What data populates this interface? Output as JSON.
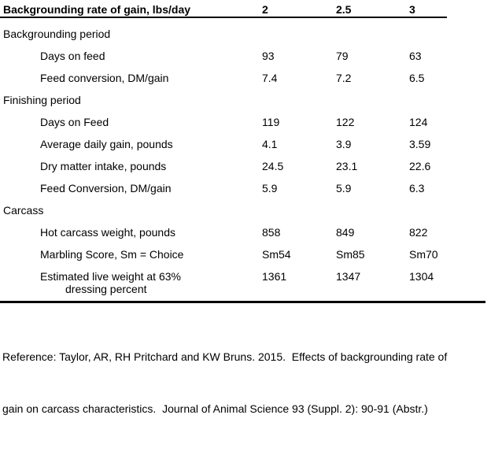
{
  "table": {
    "header": {
      "label": "Backgrounding rate of gain, lbs/day",
      "columns": [
        "2",
        "2.5",
        "3"
      ]
    },
    "sections": [
      {
        "title": "Backgrounding period",
        "rows": [
          {
            "label": "Days on feed",
            "values": [
              "93",
              "79",
              "63"
            ]
          },
          {
            "label": "Feed conversion, DM/gain",
            "values": [
              "7.4",
              "7.2",
              "6.5"
            ]
          }
        ]
      },
      {
        "title": "Finishing period",
        "rows": [
          {
            "label": "Days on Feed",
            "values": [
              "119",
              "122",
              "124"
            ]
          },
          {
            "label": "Average daily gain, pounds",
            "values": [
              "4.1",
              "3.9",
              "3.59"
            ]
          },
          {
            "label": "Dry matter intake, pounds",
            "values": [
              "24.5",
              "23.1",
              "22.6"
            ]
          },
          {
            "label": "Feed Conversion, DM/gain",
            "values": [
              "5.9",
              "5.9",
              "6.3"
            ]
          }
        ]
      },
      {
        "title": "Carcass",
        "rows": [
          {
            "label": "Hot carcass weight, pounds",
            "values": [
              "858",
              "849",
              "822"
            ]
          },
          {
            "label": "Marbling Score, Sm = Choice",
            "values": [
              "Sm54",
              "Sm85",
              "Sm70"
            ]
          },
          {
            "label": "Estimated live weight at 63%",
            "label_line2": "dressing percent",
            "values": [
              "1361",
              "1347",
              "1304"
            ]
          }
        ]
      }
    ]
  },
  "reference": {
    "lines": [
      "Reference: Taylor, AR, RH Pritchard and KW Bruns. 2015.  Effects of backgrounding rate of",
      "gain on carcass characteristics.  Journal of Animal Science 93 (Suppl. 2): 90-91 (Abstr.)"
    ]
  }
}
